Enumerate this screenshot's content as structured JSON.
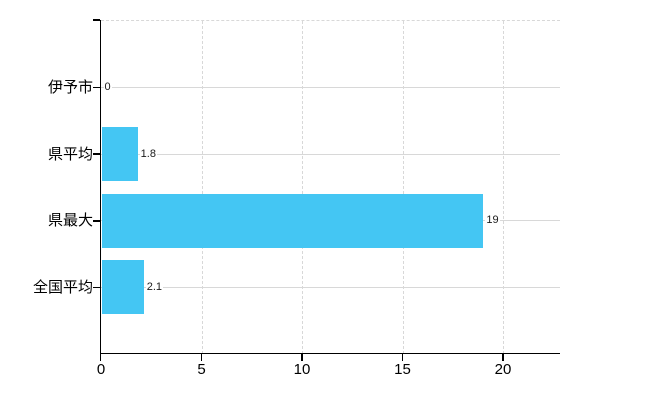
{
  "chart_data": {
    "type": "bar",
    "orientation": "horizontal",
    "title": "",
    "categories": [
      "伊予市",
      "県平均",
      "県最大",
      "全国平均"
    ],
    "values": [
      0,
      1.8,
      19,
      2.1
    ],
    "value_labels": [
      "0",
      "1.8",
      "19",
      "2.1"
    ],
    "series": [
      {
        "name": "",
        "values": [
          0,
          1.8,
          19,
          2.1
        ]
      }
    ],
    "x_axis": {
      "min": 0,
      "max": 22.8,
      "ticks": [
        0,
        5,
        10,
        15,
        20
      ],
      "tick_labels": [
        "0",
        "5",
        "10",
        "15",
        "20"
      ]
    },
    "y_axis": {
      "label": ""
    },
    "legend": {
      "visible": false
    },
    "grid": {
      "vertical_style": "dashed",
      "horizontal_style": "solid",
      "top_border_style": "dashed"
    },
    "colors": {
      "bar": "#44C6F3",
      "grid": "#D8D8D8",
      "axis": "#000000",
      "text": "#000000",
      "value_text": "#1a1a1a",
      "background": "#FFFFFF"
    }
  }
}
